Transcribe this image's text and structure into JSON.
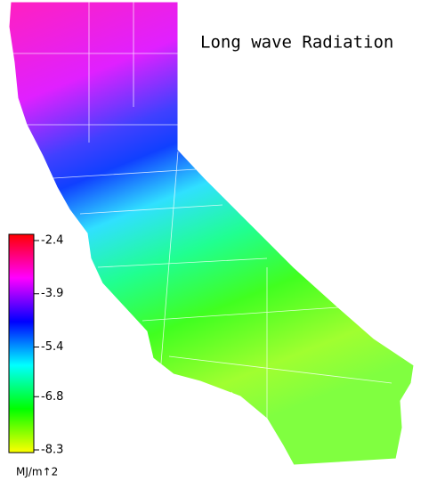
{
  "title": "Long wave Radiation",
  "colorbar": {
    "ticks": [
      -2.4,
      -3.9,
      -5.4,
      -6.8,
      -8.3
    ],
    "lim": [
      -2.4,
      -8.3
    ],
    "colors": [
      "#ff0000",
      "#ff00ff",
      "#0000ff",
      "#00ffff",
      "#00ff00",
      "#ffff00"
    ],
    "label": "MJ/m↑2"
  }
}
